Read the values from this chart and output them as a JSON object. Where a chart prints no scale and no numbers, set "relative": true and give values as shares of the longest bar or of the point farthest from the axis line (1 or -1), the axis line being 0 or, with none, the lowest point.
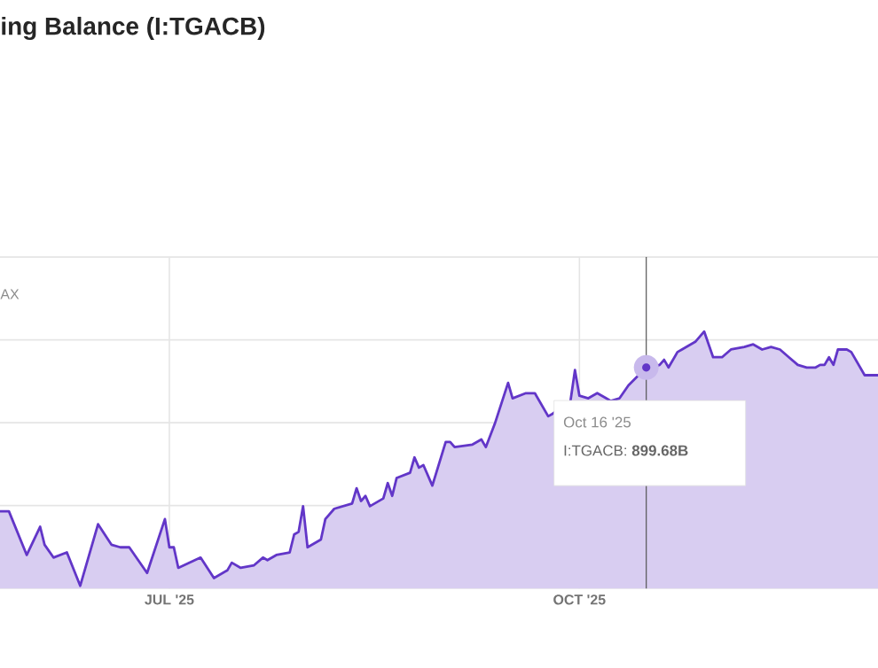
{
  "chart_data": {
    "type": "area",
    "relative": true,
    "title": "ing Balance (I:TGACB)",
    "x": [
      "2025-05-24",
      "2025-05-26",
      "2025-05-30",
      "2025-06-02",
      "2025-06-03",
      "2025-06-05",
      "2025-06-08",
      "2025-06-11",
      "2025-06-15",
      "2025-06-18",
      "2025-06-20",
      "2025-06-22",
      "2025-06-26",
      "2025-06-30",
      "2025-07-01",
      "2025-07-02",
      "2025-07-03",
      "2025-07-08",
      "2025-07-11",
      "2025-07-14",
      "2025-07-15",
      "2025-07-17",
      "2025-07-20",
      "2025-07-22",
      "2025-07-23",
      "2025-07-25",
      "2025-07-28",
      "2025-07-29",
      "2025-07-30",
      "2025-07-31",
      "2025-08-01",
      "2025-08-04",
      "2025-08-05",
      "2025-08-07",
      "2025-08-11",
      "2025-08-12",
      "2025-08-13",
      "2025-08-14",
      "2025-08-15",
      "2025-08-18",
      "2025-08-19",
      "2025-08-20",
      "2025-08-21",
      "2025-08-24",
      "2025-08-25",
      "2025-08-26",
      "2025-08-27",
      "2025-08-29",
      "2025-09-01",
      "2025-09-02",
      "2025-09-03",
      "2025-09-07",
      "2025-09-09",
      "2025-09-10",
      "2025-09-12",
      "2025-09-15",
      "2025-09-16",
      "2025-09-19",
      "2025-09-21",
      "2025-09-24",
      "2025-09-25",
      "2025-09-29",
      "2025-09-30",
      "2025-10-01",
      "2025-10-03",
      "2025-10-05",
      "2025-10-07",
      "2025-10-08",
      "2025-10-10",
      "2025-10-12",
      "2025-10-16",
      "2025-10-17",
      "2025-10-19",
      "2025-10-20",
      "2025-10-21",
      "2025-10-23",
      "2025-10-24",
      "2025-10-27",
      "2025-10-29",
      "2025-10-31",
      "2025-11-02",
      "2025-11-04",
      "2025-11-07",
      "2025-11-09",
      "2025-11-11",
      "2025-11-13",
      "2025-11-15",
      "2025-11-17",
      "2025-11-19",
      "2025-11-21",
      "2025-11-23",
      "2025-11-24",
      "2025-11-25",
      "2025-11-26",
      "2025-11-27",
      "2025-11-28",
      "2025-11-30",
      "2025-12-01",
      "2025-12-04",
      "2025-12-06",
      "2025-12-07"
    ],
    "series": [
      {
        "color": "#6236c8",
        "values": [
          0.3,
          0.3,
          0.13,
          0.24,
          0.17,
          0.12,
          0.14,
          0.01,
          0.25,
          0.17,
          0.16,
          0.16,
          0.06,
          0.27,
          0.16,
          0.16,
          0.08,
          0.12,
          0.04,
          0.07,
          0.1,
          0.08,
          0.09,
          0.12,
          0.11,
          0.13,
          0.14,
          0.21,
          0.22,
          0.32,
          0.16,
          0.19,
          0.27,
          0.31,
          0.33,
          0.39,
          0.34,
          0.36,
          0.32,
          0.35,
          0.41,
          0.36,
          0.43,
          0.45,
          0.51,
          0.47,
          0.48,
          0.4,
          0.57,
          0.57,
          0.55,
          0.56,
          0.58,
          0.55,
          0.64,
          0.8,
          0.74,
          0.76,
          0.76,
          0.67,
          0.68,
          0.73,
          0.85,
          0.75,
          0.74,
          0.76,
          0.74,
          0.73,
          0.74,
          0.79,
          0.86,
          0.86,
          0.87,
          0.89,
          0.86,
          0.92,
          0.93,
          0.96,
          1.0,
          0.9,
          0.9,
          0.93,
          0.94,
          0.95,
          0.93,
          0.94,
          0.93,
          0.9,
          0.87,
          0.86,
          0.86,
          0.87,
          0.87,
          0.9,
          0.87,
          0.93,
          0.93,
          0.92,
          0.83,
          0.83,
          0.83
        ]
      }
    ],
    "xlim": [
      "2025-05-24",
      "2025-12-07"
    ],
    "xticks": [
      {
        "value": "2025-07-01",
        "label": "JUL '25"
      },
      {
        "value": "2025-10-01",
        "label": "OCT '25"
      }
    ],
    "grid": true,
    "ref_lines": [
      {
        "axis": "x",
        "value": "2025-10-16",
        "color": "#555555"
      }
    ],
    "annotations": [
      "AX",
      "Oct 16 '25",
      "I:TGACB: **899.68B**"
    ]
  }
}
